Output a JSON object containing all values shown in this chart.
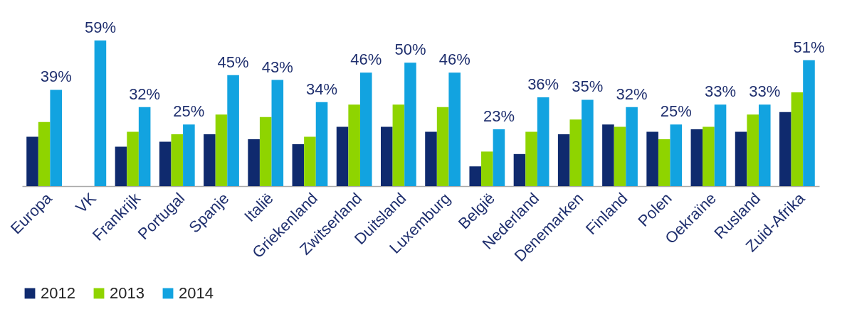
{
  "chart_data": {
    "type": "bar",
    "categories": [
      "Europa",
      "VK",
      "Frankrijk",
      "Portugal",
      "Spanje",
      "Italië",
      "Griekenland",
      "Zwitserland",
      "Duitsland",
      "Luxemburg",
      "België",
      "Nederland",
      "Denemarken",
      "Finland",
      "Polen",
      "Oekraïne",
      "Rusland",
      "Zuid-Afrika"
    ],
    "series": [
      {
        "name": "2012",
        "color": "#0f2a6e",
        "values": [
          20,
          null,
          16,
          18,
          21,
          19,
          17,
          24,
          24,
          22,
          8,
          13,
          21,
          25,
          22,
          23,
          22,
          30
        ]
      },
      {
        "name": "2013",
        "color": "#8fd400",
        "values": [
          26,
          null,
          22,
          21,
          29,
          28,
          20,
          33,
          33,
          32,
          14,
          22,
          27,
          24,
          19,
          24,
          29,
          38
        ]
      },
      {
        "name": "2014",
        "color": "#12a3e0",
        "values": [
          39,
          59,
          32,
          25,
          45,
          43,
          34,
          46,
          50,
          46,
          23,
          36,
          35,
          32,
          25,
          33,
          33,
          51
        ],
        "value_labels": [
          "39%",
          "59%",
          "32%",
          "25%",
          "45%",
          "43%",
          "34%",
          "46%",
          "50%",
          "46%",
          "23%",
          "36%",
          "35%",
          "32%",
          "25%",
          "33%",
          "33%",
          "51%"
        ]
      }
    ],
    "legend": "bottom left"
  }
}
